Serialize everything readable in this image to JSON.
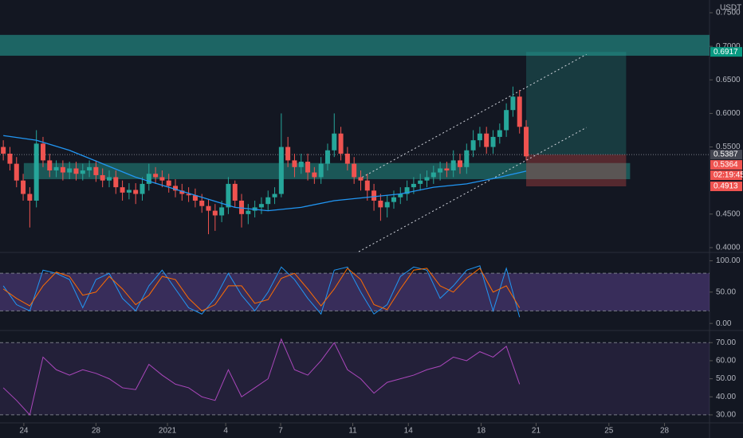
{
  "chart_data": [
    {
      "type": "candlestick",
      "axis_unit": "USDT",
      "countdown": "02:19:45",
      "xlim": [
        -0.5,
        106.7
      ],
      "xticks": [
        {
          "value": 3.1,
          "label": "24"
        },
        {
          "value": 14,
          "label": "28"
        },
        {
          "value": 24.8,
          "label": "2021"
        },
        {
          "value": 33.6,
          "label": "4"
        },
        {
          "value": 41.9,
          "label": "7"
        },
        {
          "value": 52.8,
          "label": "11"
        },
        {
          "value": 61.2,
          "label": "14"
        },
        {
          "value": 72.2,
          "label": "18"
        },
        {
          "value": 80.5,
          "label": "21"
        },
        {
          "value": 91.5,
          "label": "25"
        },
        {
          "value": 99.9,
          "label": "28"
        }
      ],
      "ylim": [
        0.394,
        0.769
      ],
      "yticks": [
        {
          "value": 0.75,
          "label": "0.7500"
        },
        {
          "value": 0.7,
          "label": "0.7000"
        },
        {
          "value": 0.65,
          "label": "0.6500"
        },
        {
          "value": 0.6,
          "label": "0.6000"
        },
        {
          "value": 0.55,
          "label": "0.5500"
        },
        {
          "value": 0.45,
          "label": "0.4500"
        },
        {
          "value": 0.4,
          "label": "0.4000"
        }
      ],
      "up_color": "#26a69a",
      "down_color": "#ef5350",
      "open": [
        0.55,
        0.54,
        0.525,
        0.5,
        0.48,
        0.47,
        0.555,
        0.53,
        0.515,
        0.52,
        0.512,
        0.518,
        0.51,
        0.515,
        0.52,
        0.508,
        0.5,
        0.505,
        0.49,
        0.482,
        0.486,
        0.48,
        0.495,
        0.51,
        0.505,
        0.5,
        0.492,
        0.485,
        0.48,
        0.478,
        0.47,
        0.462,
        0.455,
        0.448,
        0.46,
        0.495,
        0.47,
        0.45,
        0.455,
        0.46,
        0.465,
        0.475,
        0.48,
        0.55,
        0.53,
        0.52,
        0.528,
        0.512,
        0.505,
        0.525,
        0.545,
        0.57,
        0.54,
        0.525,
        0.505,
        0.5,
        0.485,
        0.47,
        0.46,
        0.468,
        0.475,
        0.48,
        0.49,
        0.495,
        0.5,
        0.505,
        0.512,
        0.518,
        0.515,
        0.53,
        0.52,
        0.545,
        0.56,
        0.57,
        0.55,
        0.565,
        0.575,
        0.605,
        0.625,
        0.58
      ],
      "high": [
        0.56,
        0.55,
        0.535,
        0.51,
        0.49,
        0.575,
        0.565,
        0.54,
        0.53,
        0.53,
        0.528,
        0.528,
        0.525,
        0.53,
        0.53,
        0.518,
        0.515,
        0.515,
        0.5,
        0.496,
        0.496,
        0.505,
        0.525,
        0.52,
        0.515,
        0.51,
        0.502,
        0.495,
        0.49,
        0.488,
        0.48,
        0.472,
        0.465,
        0.47,
        0.505,
        0.5,
        0.48,
        0.465,
        0.47,
        0.475,
        0.485,
        0.49,
        0.6,
        0.565,
        0.54,
        0.54,
        0.54,
        0.52,
        0.535,
        0.555,
        0.6,
        0.58,
        0.55,
        0.535,
        0.515,
        0.51,
        0.495,
        0.48,
        0.478,
        0.485,
        0.49,
        0.5,
        0.505,
        0.51,
        0.515,
        0.522,
        0.528,
        0.528,
        0.545,
        0.54,
        0.555,
        0.575,
        0.58,
        0.58,
        0.575,
        0.585,
        0.615,
        0.64,
        0.635,
        0.59
      ],
      "low": [
        0.53,
        0.515,
        0.49,
        0.47,
        0.43,
        0.46,
        0.52,
        0.505,
        0.505,
        0.5,
        0.502,
        0.5,
        0.5,
        0.505,
        0.498,
        0.49,
        0.49,
        0.48,
        0.47,
        0.472,
        0.465,
        0.47,
        0.485,
        0.495,
        0.49,
        0.482,
        0.475,
        0.47,
        0.468,
        0.46,
        0.452,
        0.42,
        0.425,
        0.438,
        0.45,
        0.46,
        0.43,
        0.435,
        0.445,
        0.45,
        0.455,
        0.465,
        0.475,
        0.52,
        0.505,
        0.51,
        0.5,
        0.495,
        0.495,
        0.515,
        0.535,
        0.53,
        0.515,
        0.495,
        0.485,
        0.47,
        0.455,
        0.44,
        0.445,
        0.458,
        0.465,
        0.47,
        0.48,
        0.485,
        0.49,
        0.495,
        0.5,
        0.505,
        0.505,
        0.51,
        0.51,
        0.535,
        0.55,
        0.54,
        0.54,
        0.555,
        0.565,
        0.595,
        0.57,
        0.53
      ],
      "close": [
        0.54,
        0.525,
        0.5,
        0.48,
        0.47,
        0.555,
        0.53,
        0.515,
        0.52,
        0.512,
        0.518,
        0.51,
        0.515,
        0.52,
        0.508,
        0.5,
        0.505,
        0.49,
        0.482,
        0.486,
        0.48,
        0.495,
        0.51,
        0.505,
        0.5,
        0.492,
        0.485,
        0.48,
        0.478,
        0.47,
        0.462,
        0.455,
        0.448,
        0.46,
        0.495,
        0.47,
        0.45,
        0.455,
        0.46,
        0.465,
        0.475,
        0.48,
        0.55,
        0.53,
        0.52,
        0.528,
        0.512,
        0.505,
        0.525,
        0.545,
        0.57,
        0.54,
        0.525,
        0.505,
        0.5,
        0.485,
        0.47,
        0.46,
        0.468,
        0.475,
        0.48,
        0.49,
        0.495,
        0.5,
        0.505,
        0.512,
        0.518,
        0.515,
        0.53,
        0.52,
        0.545,
        0.56,
        0.57,
        0.55,
        0.565,
        0.575,
        0.605,
        0.625,
        0.58,
        0.536
      ],
      "ma": {
        "color": "#2196f3",
        "x": [
          0,
          5,
          10,
          15,
          20,
          25,
          30,
          35,
          40,
          45,
          50,
          55,
          60,
          65,
          70,
          75,
          79
        ],
        "values": [
          0.567,
          0.56,
          0.545,
          0.525,
          0.505,
          0.49,
          0.475,
          0.46,
          0.455,
          0.46,
          0.47,
          0.475,
          0.48,
          0.49,
          0.495,
          0.505,
          0.514
        ]
      },
      "zones": [
        {
          "color": "rgba(38,166,154,0.55)",
          "x": [
            -0.5,
            106.7
          ],
          "y": [
            0.686,
            0.717
          ]
        },
        {
          "color": "rgba(38,166,154,0.45)",
          "x": [
            3.1,
            94.7
          ],
          "y": [
            0.502,
            0.526
          ]
        }
      ],
      "channel": [
        {
          "x": [
            53.7,
            88.1
          ],
          "y": [
            0.502,
            0.688
          ]
        },
        {
          "x": [
            53.7,
            88.1
          ],
          "y": [
            0.392,
            0.579
          ]
        }
      ],
      "position": {
        "x": [
          79,
          94.1
        ],
        "entry": 0.5387,
        "target": 0.6917,
        "stop": 0.4913
      },
      "price_line": 0.5387,
      "price_labels": [
        {
          "value": 0.6917,
          "label": "0.6917",
          "color": "#089981"
        },
        {
          "value": 0.5387,
          "label": "0.5387",
          "color": "#434651"
        },
        {
          "value": 0.5364,
          "label": "0.5364",
          "color": "#ef5350"
        },
        {
          "value": 0.4913,
          "label": "0.4913",
          "color": "#ef5350"
        }
      ]
    },
    {
      "type": "line",
      "ylim": [
        -10,
        112
      ],
      "yticks": [
        {
          "value": 100,
          "label": "100.00"
        },
        {
          "value": 50,
          "label": "50.00"
        },
        {
          "value": 0,
          "label": "0.00"
        }
      ],
      "band": [
        20,
        80
      ],
      "band_color": "rgba(126,87,194,0.35)",
      "series": [
        {
          "color": "#2196f3",
          "x": [
            0,
            2,
            4,
            6,
            8,
            10,
            12,
            14,
            16,
            18,
            20,
            22,
            24,
            26,
            28,
            30,
            32,
            34,
            36,
            38,
            40,
            42,
            44,
            46,
            48,
            50,
            52,
            54,
            56,
            58,
            60,
            62,
            64,
            66,
            68,
            70,
            72,
            74,
            76,
            78
          ],
          "values": [
            60,
            30,
            20,
            85,
            80,
            70,
            25,
            70,
            80,
            40,
            20,
            60,
            85,
            55,
            25,
            15,
            40,
            80,
            45,
            20,
            50,
            90,
            70,
            40,
            15,
            85,
            90,
            50,
            15,
            30,
            75,
            90,
            85,
            40,
            60,
            85,
            92,
            20,
            88,
            10
          ]
        },
        {
          "color": "#ff6d00",
          "x": [
            0,
            2,
            4,
            6,
            8,
            10,
            12,
            14,
            16,
            18,
            20,
            22,
            24,
            26,
            28,
            30,
            32,
            34,
            36,
            38,
            40,
            42,
            44,
            46,
            48,
            50,
            52,
            54,
            56,
            58,
            60,
            62,
            64,
            66,
            68,
            70,
            72,
            74,
            76,
            78
          ],
          "values": [
            55,
            40,
            28,
            60,
            82,
            75,
            45,
            50,
            75,
            55,
            30,
            45,
            75,
            70,
            40,
            20,
            30,
            60,
            60,
            32,
            38,
            72,
            80,
            55,
            28,
            55,
            88,
            70,
            30,
            22,
            55,
            85,
            88,
            60,
            50,
            72,
            88,
            50,
            60,
            25
          ]
        }
      ]
    },
    {
      "type": "line",
      "ylim": [
        26,
        76.3
      ],
      "yticks": [
        {
          "value": 70,
          "label": "70.00"
        },
        {
          "value": 60,
          "label": "60.00"
        },
        {
          "value": 50,
          "label": "50.00"
        },
        {
          "value": 40,
          "label": "40.00"
        },
        {
          "value": 30,
          "label": "30.00"
        }
      ],
      "band": [
        30,
        70
      ],
      "band_color": "rgba(126,87,194,0.15)",
      "series": [
        {
          "color": "#ab47bc",
          "x": [
            0,
            2,
            4,
            6,
            8,
            10,
            12,
            14,
            16,
            18,
            20,
            22,
            24,
            26,
            28,
            30,
            32,
            34,
            36,
            38,
            40,
            42,
            44,
            46,
            48,
            50,
            52,
            54,
            56,
            58,
            60,
            62,
            64,
            66,
            68,
            70,
            72,
            74,
            76,
            78
          ],
          "values": [
            45,
            38,
            30,
            62,
            55,
            52,
            55,
            53,
            50,
            45,
            44,
            58,
            52,
            47,
            45,
            40,
            38,
            55,
            40,
            45,
            50,
            72,
            55,
            52,
            60,
            70,
            55,
            50,
            42,
            48,
            50,
            52,
            55,
            57,
            62,
            60,
            65,
            62,
            68,
            47
          ]
        }
      ]
    }
  ]
}
